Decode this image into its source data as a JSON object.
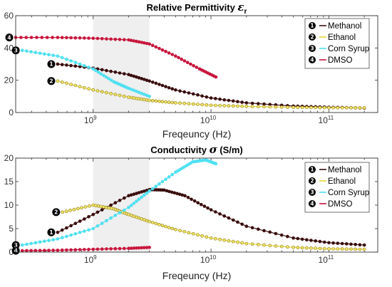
{
  "chart_data": [
    {
      "type": "line",
      "title": "Relative Permittivity ",
      "title_symbol": "ε",
      "title_sub": "r",
      "xlabel": "Freqeuncy (Hz)",
      "ylabel": "",
      "xscale": "log",
      "xlim": [
        220000000.0,
        260000000000.0
      ],
      "ylim": [
        0,
        60
      ],
      "yticks": [
        0,
        20,
        40,
        60
      ],
      "xticks": [
        {
          "base": "10",
          "exp": "9",
          "value": 1000000000.0
        },
        {
          "base": "10",
          "exp": "10",
          "value": 10000000000.0
        },
        {
          "base": "10",
          "exp": "11",
          "value": 100000000000.0
        }
      ],
      "shaded_region": [
        1000000000.0,
        3000000000.0
      ],
      "grid": false,
      "legend_position": "top-right",
      "series": [
        {
          "name": "Methanol",
          "badge": "1",
          "color": "#3a0d0d",
          "x": [
            500000000.0,
            1000000000.0,
            2000000000.0,
            3000000000.0,
            5000000000.0,
            10000000000.0,
            20000000000.0,
            50000000000.0,
            100000000000.0,
            200000000000.0
          ],
          "y": [
            30,
            27.5,
            23.5,
            19.5,
            14,
            9,
            6,
            4,
            3.3,
            2.8
          ]
        },
        {
          "name": "Ethanol",
          "badge": "2",
          "color": "#e8d638",
          "x": [
            500000000.0,
            1000000000.0,
            2000000000.0,
            3000000000.0,
            5000000000.0,
            10000000000.0,
            20000000000.0,
            50000000000.0,
            100000000000.0,
            200000000000.0
          ],
          "y": [
            19.5,
            14,
            9.5,
            7.5,
            6,
            4.5,
            3.8,
            3.2,
            3,
            2.9
          ]
        },
        {
          "name": "Corn Syrup",
          "badge": "3",
          "color": "#4fe0f0",
          "x": [
            250000000.0,
            500000000.0,
            1000000000.0,
            1500000000.0,
            2000000000.0,
            3000000000.0
          ],
          "y": [
            38.5,
            35,
            27,
            19,
            15,
            10
          ]
        },
        {
          "name": "DMSO",
          "badge": "4",
          "color": "#c8163c",
          "x": [
            220000000.0,
            500000000.0,
            1000000000.0,
            2000000000.0,
            3000000000.0,
            5000000000.0,
            8000000000.0,
            11000000000.0
          ],
          "y": [
            46.5,
            46.5,
            46,
            45,
            42.5,
            35,
            27,
            22
          ]
        }
      ]
    },
    {
      "type": "line",
      "title": "Conductivity ",
      "title_symbol": "σ",
      "title_sub": "",
      "title_unit": " (S/m)",
      "xlabel": "Freqeuncy (Hz)",
      "ylabel": "",
      "xscale": "log",
      "xlim": [
        220000000.0,
        260000000000.0
      ],
      "ylim": [
        0,
        20
      ],
      "yticks": [
        0,
        5,
        10,
        15,
        20
      ],
      "xticks": [
        {
          "base": "10",
          "exp": "9",
          "value": 1000000000.0
        },
        {
          "base": "10",
          "exp": "10",
          "value": 10000000000.0
        },
        {
          "base": "10",
          "exp": "11",
          "value": 100000000000.0
        }
      ],
      "shaded_region": [
        1000000000.0,
        3000000000.0
      ],
      "grid": false,
      "legend_position": "top-right",
      "series": [
        {
          "name": "Methanol",
          "badge": "1",
          "color": "#3a0d0d",
          "x": [
            500000000.0,
            1000000000.0,
            2000000000.0,
            3000000000.0,
            4000000000.0,
            6000000000.0,
            10000000000.0,
            20000000000.0,
            50000000000.0,
            100000000000.0,
            200000000000.0
          ],
          "y": [
            4.2,
            8,
            12,
            13.3,
            13.2,
            12,
            9,
            5.5,
            3,
            2,
            1.5
          ]
        },
        {
          "name": "Ethanol",
          "badge": "2",
          "color": "#e8d638",
          "x": [
            550000000.0,
            1000000000.0,
            1500000000.0,
            2000000000.0,
            3000000000.0,
            5000000000.0,
            10000000000.0,
            20000000000.0,
            50000000000.0,
            100000000000.0,
            200000000000.0
          ],
          "y": [
            8.5,
            10,
            9.2,
            8,
            6.5,
            4.8,
            3,
            1.8,
            1,
            0.7,
            0.6
          ]
        },
        {
          "name": "Corn Syrup",
          "badge": "3",
          "color": "#4fe0f0",
          "x": [
            250000000.0,
            500000000.0,
            1000000000.0,
            2000000000.0,
            3000000000.0,
            5000000000.0,
            7000000000.0,
            9000000000.0,
            11000000000.0
          ],
          "y": [
            1.5,
            2.8,
            5,
            9.5,
            13,
            17,
            19.2,
            19.6,
            18.8
          ]
        },
        {
          "name": "DMSO",
          "badge": "4",
          "color": "#c8163c",
          "x": [
            250000000.0,
            500000000.0,
            1000000000.0,
            2000000000.0,
            3000000000.0
          ],
          "y": [
            0.3,
            0.4,
            0.6,
            0.8,
            1
          ]
        }
      ]
    }
  ]
}
